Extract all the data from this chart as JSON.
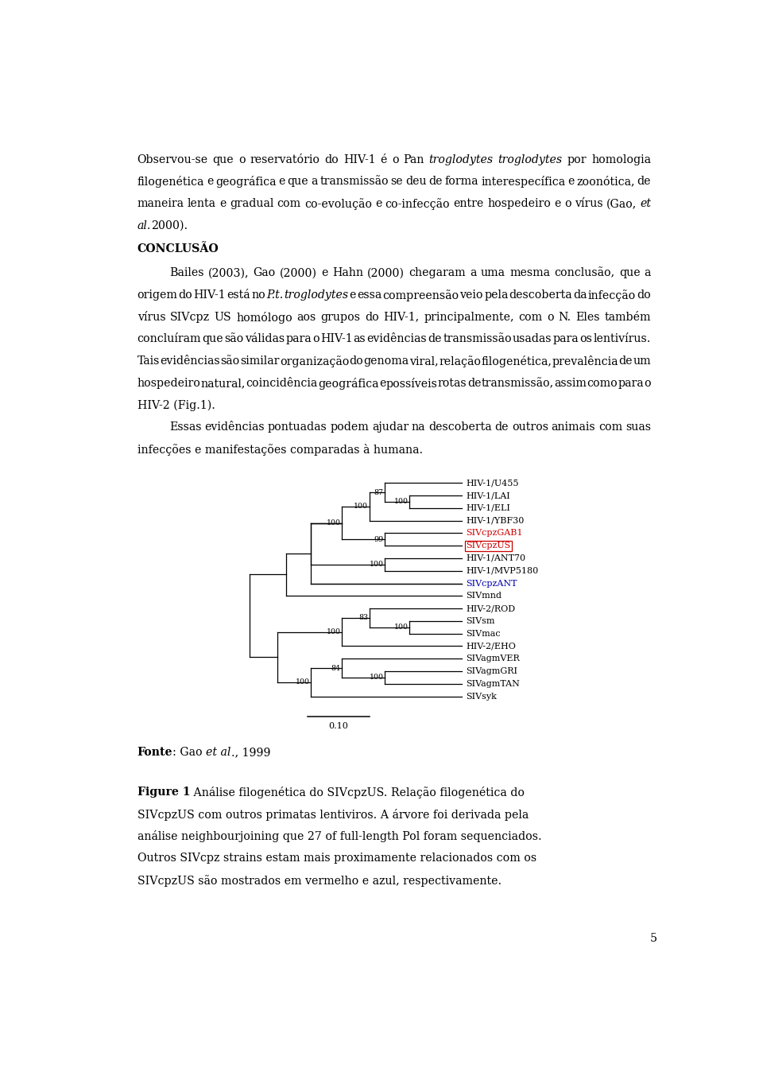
{
  "page_width": 9.6,
  "page_height": 13.58,
  "bg_color": "#ffffff",
  "lm": 0.68,
  "rm": 9.02,
  "fs": 10.2,
  "lh": 0.36,
  "tree_fs": 8.0,
  "red": "#cc0000",
  "blue": "#0000aa",
  "taxa": [
    {
      "name": "HIV-1/U455",
      "color": "black",
      "box": false
    },
    {
      "name": "HIV-1/LAI",
      "color": "black",
      "box": false
    },
    {
      "name": "HIV-1/ELI",
      "color": "black",
      "box": false
    },
    {
      "name": "HIV-1/YBF30",
      "color": "black",
      "box": false
    },
    {
      "name": "SIVcpzGAB1",
      "color": "#cc0000",
      "box": false
    },
    {
      "name": "SIVcpzUS",
      "color": "#cc0000",
      "box": true
    },
    {
      "name": "HIV-1/ANT70",
      "color": "black",
      "box": false
    },
    {
      "name": "HIV-1/MVP5180",
      "color": "black",
      "box": false
    },
    {
      "name": "SIVcpzANT",
      "color": "#0000aa",
      "box": false
    },
    {
      "name": "SIVmnd",
      "color": "black",
      "box": false
    },
    {
      "name": "HIV-2/ROD",
      "color": "black",
      "box": false
    },
    {
      "name": "SIVsm",
      "color": "black",
      "box": false
    },
    {
      "name": "SIVmac",
      "color": "black",
      "box": false
    },
    {
      "name": "HIV-2/EHO",
      "color": "black",
      "box": false
    },
    {
      "name": "SIVagmVER",
      "color": "black",
      "box": false
    },
    {
      "name": "SIVagmGRI",
      "color": "black",
      "box": false
    },
    {
      "name": "SIVagmTAN",
      "color": "black",
      "box": false
    },
    {
      "name": "SIVsyk",
      "color": "black",
      "box": false
    }
  ]
}
